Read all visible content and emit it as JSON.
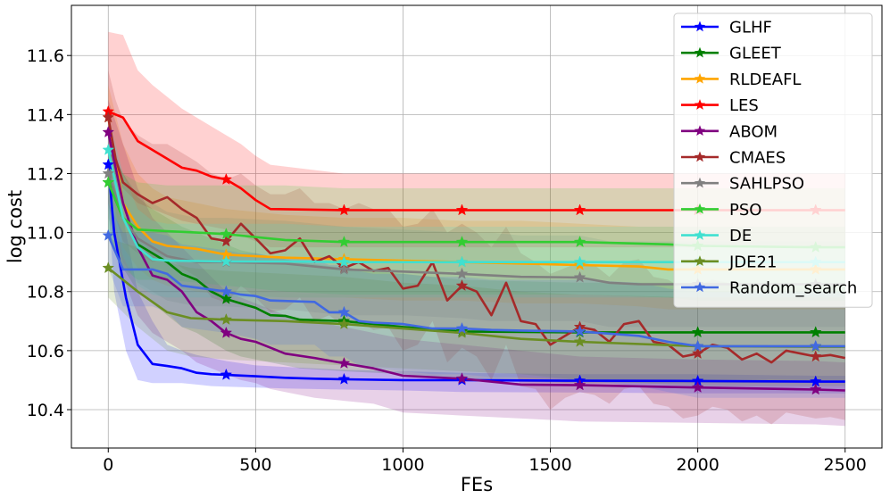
{
  "chart_data": {
    "type": "line",
    "title": "",
    "xlabel": "FEs",
    "ylabel": "log cost",
    "xlim": [
      -125,
      2625
    ],
    "ylim": [
      10.27,
      11.77
    ],
    "xticks": [
      0,
      500,
      1000,
      1500,
      2000,
      2500
    ],
    "yticks": [
      10.4,
      10.6,
      10.8,
      11.0,
      11.2,
      11.4,
      11.6
    ],
    "grid": true,
    "legend": "top-right",
    "marker": "star",
    "series": [
      {
        "name": "GLHF",
        "color": "#0000ff",
        "x": [
          0,
          20,
          60,
          100,
          150,
          200,
          250,
          300,
          350,
          400,
          500,
          600,
          700,
          800,
          1000,
          1200,
          1600,
          2000,
          2400,
          2500
        ],
        "y": [
          11.23,
          11.0,
          10.78,
          10.62,
          10.555,
          10.548,
          10.54,
          10.525,
          10.52,
          10.518,
          10.513,
          10.508,
          10.505,
          10.503,
          10.5,
          10.5,
          10.498,
          10.497,
          10.495,
          10.495
        ],
        "upper": [
          11.35,
          11.25,
          11.0,
          10.8,
          10.7,
          10.62,
          10.6,
          10.585,
          10.575,
          10.565,
          10.55,
          10.545,
          10.54,
          10.535,
          10.53,
          10.525,
          10.52,
          10.52,
          10.515,
          10.515
        ],
        "lower": [
          11.1,
          10.8,
          10.6,
          10.5,
          10.49,
          10.49,
          10.49,
          10.485,
          10.48,
          10.478,
          10.475,
          10.472,
          10.47,
          10.468,
          10.465,
          10.46,
          10.458,
          10.455,
          10.455,
          10.455
        ],
        "markers_x": [
          0,
          400,
          800,
          1200,
          1600,
          2000,
          2400
        ]
      },
      {
        "name": "GLEET",
        "color": "#008000",
        "x": [
          0,
          50,
          100,
          150,
          200,
          250,
          300,
          350,
          400,
          450,
          500,
          550,
          600,
          650,
          800,
          1000,
          1200,
          1600,
          2000,
          2400,
          2500
        ],
        "y": [
          11.17,
          11.05,
          10.96,
          10.93,
          10.9,
          10.86,
          10.84,
          10.8,
          10.775,
          10.76,
          10.745,
          10.72,
          10.718,
          10.705,
          10.7,
          10.68,
          10.665,
          10.662,
          10.662,
          10.662,
          10.662
        ],
        "upper": [
          11.3,
          11.2,
          11.12,
          11.08,
          11.05,
          11.02,
          11.0,
          10.98,
          10.96,
          10.94,
          10.93,
          10.92,
          10.91,
          10.9,
          10.88,
          10.86,
          10.84,
          10.83,
          10.83,
          10.83,
          10.83
        ],
        "lower": [
          11.0,
          10.88,
          10.8,
          10.76,
          10.72,
          10.68,
          10.66,
          10.63,
          10.6,
          10.58,
          10.57,
          10.56,
          10.55,
          10.54,
          10.53,
          10.52,
          10.5,
          10.49,
          10.49,
          10.49,
          10.49
        ],
        "markers_x": [
          0,
          400,
          800,
          1200,
          1600,
          2000,
          2400
        ]
      },
      {
        "name": "RLDEAFL",
        "color": "#ffa500",
        "x": [
          0,
          50,
          100,
          150,
          200,
          300,
          400,
          600,
          800,
          1000,
          1200,
          1400,
          1600,
          1800,
          1900,
          2000,
          2400,
          2500
        ],
        "y": [
          11.39,
          11.1,
          11.02,
          10.97,
          10.955,
          10.945,
          10.925,
          10.915,
          10.91,
          10.905,
          10.9,
          10.895,
          10.89,
          10.885,
          10.875,
          10.875,
          10.875,
          10.875
        ],
        "upper": [
          11.5,
          11.3,
          11.2,
          11.15,
          11.12,
          11.1,
          11.08,
          11.06,
          11.05,
          11.05,
          11.04,
          11.04,
          11.03,
          11.02,
          11.02,
          11.02,
          11.02,
          11.02
        ],
        "lower": [
          11.2,
          10.95,
          10.88,
          10.84,
          10.82,
          10.8,
          10.79,
          10.78,
          10.78,
          10.77,
          10.77,
          10.76,
          10.76,
          10.75,
          10.74,
          10.74,
          10.74,
          10.74
        ],
        "markers_x": [
          0,
          400,
          800,
          1200,
          1600,
          2000,
          2400
        ]
      },
      {
        "name": "LES",
        "color": "#ff0000",
        "x": [
          0,
          50,
          100,
          150,
          200,
          250,
          300,
          350,
          400,
          450,
          500,
          550,
          800,
          1200,
          1600,
          2000,
          2400,
          2500
        ],
        "y": [
          11.41,
          11.39,
          11.31,
          11.28,
          11.25,
          11.22,
          11.21,
          11.19,
          11.18,
          11.15,
          11.11,
          11.08,
          11.076,
          11.076,
          11.076,
          11.076,
          11.076,
          11.076
        ],
        "upper": [
          11.68,
          11.67,
          11.55,
          11.5,
          11.46,
          11.42,
          11.39,
          11.36,
          11.33,
          11.3,
          11.26,
          11.23,
          11.2,
          11.2,
          11.2,
          11.2,
          11.2,
          11.2
        ],
        "lower": [
          11.2,
          11.15,
          11.1,
          11.08,
          11.06,
          11.04,
          11.03,
          11.02,
          11.01,
          10.99,
          10.97,
          10.95,
          10.95,
          10.95,
          10.95,
          10.95,
          10.95,
          10.95
        ],
        "markers_x": [
          0,
          400,
          800,
          1200,
          1600,
          2000,
          2400
        ]
      },
      {
        "name": "ABOM",
        "color": "#800080",
        "x": [
          0,
          50,
          100,
          150,
          200,
          250,
          300,
          350,
          400,
          450,
          500,
          550,
          600,
          700,
          800,
          900,
          1000,
          1200,
          1400,
          1600,
          2000,
          2400,
          2500
        ],
        "y": [
          11.34,
          11.1,
          10.95,
          10.855,
          10.84,
          10.8,
          10.73,
          10.7,
          10.66,
          10.64,
          10.63,
          10.61,
          10.59,
          10.575,
          10.557,
          10.54,
          10.515,
          10.505,
          10.485,
          10.483,
          10.475,
          10.468,
          10.465
        ],
        "upper": [
          11.45,
          11.3,
          11.15,
          11.05,
          11.0,
          10.95,
          10.9,
          10.85,
          10.8,
          10.78,
          10.76,
          10.74,
          10.72,
          10.7,
          10.68,
          10.66,
          10.64,
          10.62,
          10.6,
          10.58,
          10.57,
          10.565,
          10.56
        ],
        "lower": [
          11.1,
          10.85,
          10.72,
          10.66,
          10.63,
          10.6,
          10.56,
          10.54,
          10.52,
          10.5,
          10.49,
          10.47,
          10.46,
          10.44,
          10.43,
          10.42,
          10.39,
          10.38,
          10.37,
          10.36,
          10.355,
          10.35,
          10.345
        ],
        "markers_x": [
          0,
          400,
          800,
          1200,
          1600,
          2000,
          2400
        ]
      },
      {
        "name": "CMAES",
        "color": "#a52a2a",
        "x": [
          0,
          25,
          50,
          100,
          150,
          200,
          250,
          300,
          350,
          380,
          400,
          450,
          500,
          550,
          600,
          650,
          700,
          750,
          800,
          850,
          900,
          950,
          1000,
          1050,
          1100,
          1150,
          1200,
          1250,
          1300,
          1350,
          1400,
          1450,
          1500,
          1550,
          1600,
          1650,
          1700,
          1750,
          1800,
          1850,
          1900,
          1950,
          2000,
          2050,
          2100,
          2150,
          2200,
          2250,
          2300,
          2350,
          2400,
          2450,
          2500
        ],
        "y": [
          11.39,
          11.25,
          11.17,
          11.13,
          11.1,
          11.12,
          11.08,
          11.05,
          10.98,
          10.975,
          10.97,
          11.03,
          10.98,
          10.93,
          10.94,
          10.98,
          10.9,
          10.92,
          10.88,
          10.9,
          10.87,
          10.88,
          10.81,
          10.82,
          10.9,
          10.77,
          10.82,
          10.8,
          10.72,
          10.83,
          10.7,
          10.69,
          10.62,
          10.65,
          10.68,
          10.67,
          10.63,
          10.69,
          10.7,
          10.63,
          10.62,
          10.58,
          10.59,
          10.62,
          10.61,
          10.57,
          10.59,
          10.56,
          10.6,
          10.59,
          10.58,
          10.585,
          10.575
        ],
        "upper": [
          11.55,
          11.45,
          11.38,
          11.33,
          11.3,
          11.3,
          11.27,
          11.24,
          11.2,
          11.19,
          11.18,
          11.2,
          11.16,
          11.13,
          11.13,
          11.15,
          11.1,
          11.1,
          11.08,
          11.1,
          11.08,
          11.08,
          11.02,
          11.03,
          11.08,
          11.0,
          11.03,
          11.0,
          10.95,
          11.02,
          10.93,
          10.9,
          10.86,
          10.88,
          10.9,
          10.89,
          10.85,
          10.9,
          10.91,
          10.85,
          10.84,
          10.81,
          10.82,
          10.84,
          10.83,
          10.8,
          10.82,
          10.8,
          10.82,
          10.81,
          10.8,
          10.8,
          10.8
        ],
        "lower": [
          11.2,
          11.05,
          10.97,
          10.93,
          10.9,
          10.92,
          10.88,
          10.85,
          10.78,
          10.77,
          10.76,
          10.82,
          10.78,
          10.73,
          10.74,
          10.78,
          10.7,
          10.72,
          10.68,
          10.7,
          10.67,
          10.68,
          10.6,
          10.62,
          10.7,
          10.56,
          10.61,
          10.58,
          10.5,
          10.62,
          10.48,
          10.47,
          10.4,
          10.44,
          10.46,
          10.45,
          10.42,
          10.47,
          10.48,
          10.42,
          10.41,
          10.37,
          10.38,
          10.41,
          10.4,
          10.36,
          10.38,
          10.35,
          10.39,
          10.38,
          10.37,
          10.375,
          10.365
        ],
        "markers_x": [
          0,
          400,
          800,
          1200,
          1600,
          2000,
          2400
        ]
      },
      {
        "name": "SAHLPSO",
        "color": "#808080",
        "x": [
          0,
          50,
          100,
          150,
          200,
          250,
          300,
          400,
          600,
          800,
          1000,
          1200,
          1300,
          1400,
          1600,
          1700,
          1800,
          2000,
          2400,
          2500
        ],
        "y": [
          11.2,
          11.05,
          10.98,
          10.95,
          10.92,
          10.91,
          10.9,
          10.9,
          10.895,
          10.875,
          10.868,
          10.86,
          10.855,
          10.85,
          10.848,
          10.83,
          10.825,
          10.825,
          10.825,
          10.825
        ],
        "upper": [
          11.35,
          11.2,
          11.13,
          11.1,
          11.07,
          11.06,
          11.05,
          11.05,
          11.04,
          11.02,
          11.01,
          11.0,
          11.0,
          10.99,
          10.99,
          10.97,
          10.97,
          10.97,
          10.97,
          10.97
        ],
        "lower": [
          11.05,
          10.9,
          10.83,
          10.8,
          10.77,
          10.76,
          10.75,
          10.75,
          10.74,
          10.72,
          10.72,
          10.71,
          10.7,
          10.7,
          10.7,
          10.68,
          10.68,
          10.68,
          10.68,
          10.68
        ],
        "markers_x": [
          0,
          400,
          800,
          1200,
          1600,
          2000,
          2400
        ]
      },
      {
        "name": "PSO",
        "color": "#32cd32",
        "x": [
          0,
          50,
          100,
          200,
          300,
          400,
          600,
          800,
          1200,
          1600,
          1900,
          2000,
          2400,
          2500
        ],
        "y": [
          11.17,
          11.05,
          11.01,
          11.005,
          11.0,
          10.995,
          10.975,
          10.968,
          10.968,
          10.968,
          10.96,
          10.955,
          10.95,
          10.95
        ],
        "upper": [
          11.3,
          11.2,
          11.17,
          11.16,
          11.16,
          11.16,
          11.16,
          11.15,
          11.15,
          11.15,
          11.15,
          11.15,
          11.15,
          11.15
        ],
        "lower": [
          11.0,
          10.88,
          10.84,
          10.84,
          10.83,
          10.82,
          10.8,
          10.79,
          10.79,
          10.79,
          10.78,
          10.77,
          10.77,
          10.77
        ],
        "markers_x": [
          0,
          400,
          800,
          1200,
          1600,
          2000,
          2400
        ]
      },
      {
        "name": "DE",
        "color": "#40e0d0",
        "x": [
          0,
          50,
          100,
          150,
          200,
          400,
          600,
          800,
          1200,
          1600,
          2000,
          2400,
          2500
        ],
        "y": [
          11.28,
          11.05,
          10.95,
          10.91,
          10.905,
          10.902,
          10.902,
          10.9,
          10.9,
          10.9,
          10.9,
          10.9,
          10.9
        ],
        "upper": [
          11.4,
          11.2,
          11.08,
          11.04,
          11.03,
          11.03,
          11.03,
          11.02,
          11.02,
          11.02,
          11.02,
          11.02,
          11.02
        ],
        "lower": [
          11.15,
          10.92,
          10.82,
          10.79,
          10.78,
          10.78,
          10.78,
          10.78,
          10.78,
          10.78,
          10.78,
          10.78,
          10.78
        ],
        "markers_x": [
          0,
          400,
          800,
          1200,
          1600,
          2000,
          2400
        ]
      },
      {
        "name": "JDE21",
        "color": "#6b8e23",
        "x": [
          0,
          100,
          200,
          280,
          400,
          600,
          800,
          1000,
          1200,
          1400,
          1600,
          2000,
          2400,
          2500
        ],
        "y": [
          10.88,
          10.8,
          10.73,
          10.71,
          10.705,
          10.7,
          10.69,
          10.675,
          10.66,
          10.64,
          10.63,
          10.615,
          10.613,
          10.613
        ],
        "upper": [
          10.98,
          10.95,
          10.9,
          10.88,
          10.87,
          10.86,
          10.85,
          10.83,
          10.82,
          10.8,
          10.79,
          10.78,
          10.78,
          10.78
        ],
        "lower": [
          10.78,
          10.68,
          10.6,
          10.58,
          10.57,
          10.56,
          10.55,
          10.54,
          10.53,
          10.52,
          10.5,
          10.48,
          10.48,
          10.48
        ],
        "markers_x": [
          0,
          400,
          800,
          1200,
          1600,
          2000,
          2400
        ]
      },
      {
        "name": "Random_search",
        "color": "#4169e1",
        "x": [
          0,
          50,
          100,
          150,
          200,
          250,
          400,
          450,
          500,
          550,
          700,
          750,
          800,
          850,
          900,
          1000,
          1100,
          1200,
          1300,
          1400,
          1600,
          1800,
          1900,
          2000,
          2200,
          2400,
          2500
        ],
        "y": [
          10.99,
          10.875,
          10.875,
          10.875,
          10.86,
          10.82,
          10.8,
          10.79,
          10.785,
          10.77,
          10.765,
          10.73,
          10.73,
          10.7,
          10.695,
          10.69,
          10.675,
          10.675,
          10.67,
          10.668,
          10.665,
          10.65,
          10.63,
          10.615,
          10.615,
          10.615,
          10.615
        ],
        "upper": [
          11.1,
          11.0,
          11.0,
          11.0,
          10.99,
          10.96,
          10.94,
          10.93,
          10.93,
          10.92,
          10.91,
          10.89,
          10.89,
          10.87,
          10.86,
          10.86,
          10.85,
          10.85,
          10.84,
          10.84,
          10.84,
          10.83,
          10.81,
          10.8,
          10.8,
          10.8,
          10.8
        ],
        "lower": [
          10.88,
          10.75,
          10.75,
          10.75,
          10.73,
          10.68,
          10.66,
          10.65,
          10.64,
          10.62,
          10.62,
          10.58,
          10.58,
          10.55,
          10.54,
          10.53,
          10.52,
          10.52,
          10.51,
          10.51,
          10.5,
          10.48,
          10.46,
          10.44,
          10.44,
          10.44,
          10.44
        ],
        "markers_x": [
          0,
          400,
          800,
          1200,
          1600,
          2000,
          2400
        ]
      }
    ]
  }
}
